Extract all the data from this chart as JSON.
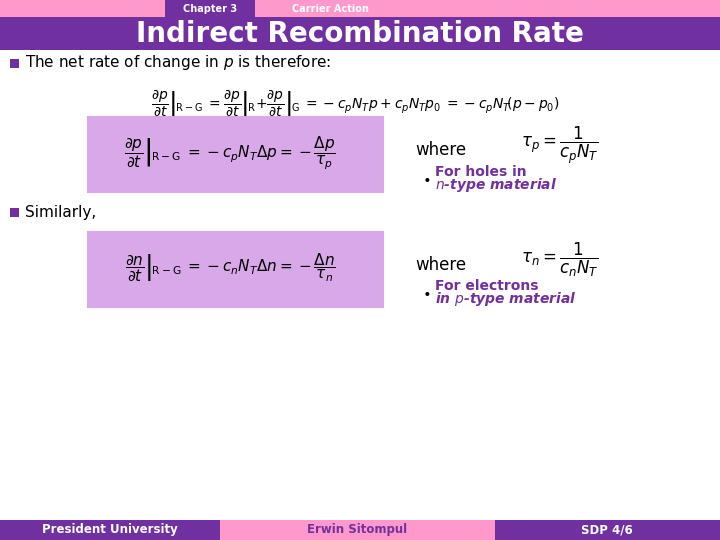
{
  "title": "Indirect Recombination Rate",
  "chapter_label": "Chapter 3",
  "chapter_tab2": "Carrier Action",
  "bg_color": "#ffffff",
  "header_purple": "#7030A0",
  "header_pink": "#FF99CC",
  "footer_purple": "#7030A0",
  "footer_pink": "#FF99CC",
  "footer_right_color": "#7030A0",
  "bullet_color": "#7030A0",
  "eq_box_color": "#D9A8E8",
  "text1": "The net rate of change in $p$ is therefore:",
  "text2": "Similarly,",
  "where_label": "where",
  "bullet1_note1": "For holes in",
  "bullet1_note2": "$n$-type material",
  "bullet2_note1": "For electrons",
  "bullet2_note2": "in $p$-type material",
  "footer_left": "President University",
  "footer_mid": "Erwin Sitompul",
  "footer_right": "SDP 4/6",
  "note_color": "#7030A0"
}
